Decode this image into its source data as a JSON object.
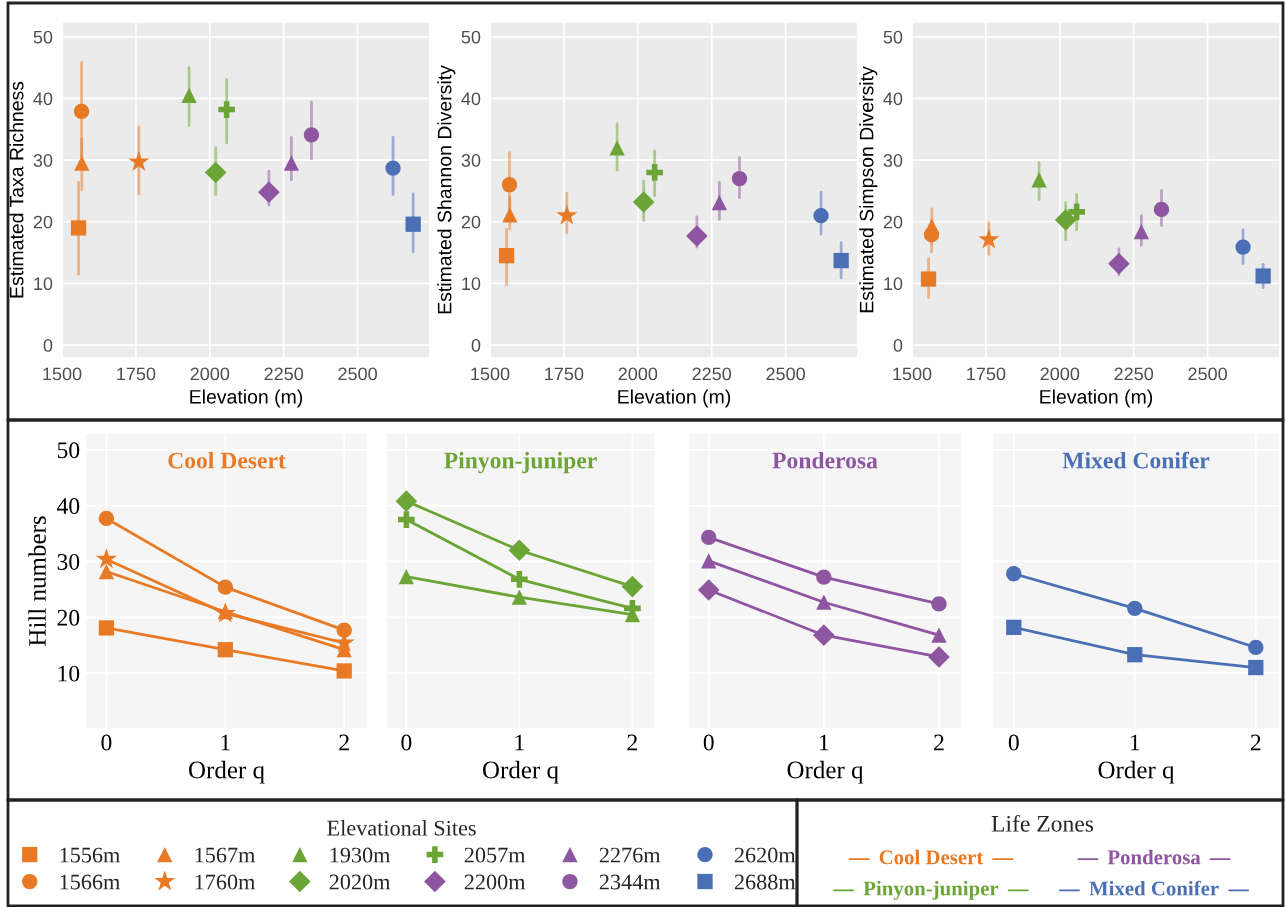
{
  "chart_data": [
    {
      "type": "scatter",
      "xlabel": "Elevation (m)",
      "ylabel": "Estimated Taxa Richness",
      "xlim": [
        1500,
        2745
      ],
      "ylim": [
        -2.1,
        52.4
      ],
      "xticks": [
        1500,
        1750,
        2000,
        2250,
        2500
      ],
      "yticks": [
        0,
        10,
        20,
        30,
        40,
        50
      ],
      "grid": true,
      "legend": "bottom",
      "legend_title": "Elevational Sites",
      "series": [
        {
          "name": "1556m",
          "color": "#e87a26",
          "marker": "square",
          "x": [
            1556
          ],
          "values": [
            19.0
          ],
          "errors": [
            [
              11.5,
              26.4
            ]
          ]
        },
        {
          "name": "1566m",
          "color": "#e87a26",
          "marker": "circle",
          "x": [
            1566
          ],
          "values": [
            37.9
          ],
          "errors": [
            [
              30.5,
              45.8
            ]
          ]
        },
        {
          "name": "1567m",
          "color": "#e87a26",
          "marker": "triangle",
          "x": [
            1567
          ],
          "values": [
            29.5
          ],
          "errors": [
            [
              25.2,
              33.5
            ]
          ]
        },
        {
          "name": "1760m",
          "color": "#e87a26",
          "marker": "star",
          "x": [
            1760
          ],
          "values": [
            29.7
          ],
          "errors": [
            [
              24.5,
              35.4
            ]
          ]
        },
        {
          "name": "1930m",
          "color": "#6aa535",
          "marker": "triangle",
          "x": [
            1930
          ],
          "values": [
            40.5
          ],
          "errors": [
            [
              35.6,
              45.0
            ]
          ]
        },
        {
          "name": "2020m",
          "color": "#6aa535",
          "marker": "diamond",
          "x": [
            2020
          ],
          "values": [
            28.0
          ],
          "errors": [
            [
              24.4,
              32.0
            ]
          ]
        },
        {
          "name": "2057m",
          "color": "#6aa535",
          "marker": "cross",
          "x": [
            2057
          ],
          "values": [
            38.2
          ],
          "errors": [
            [
              32.8,
              43.1
            ]
          ]
        },
        {
          "name": "2200m",
          "color": "#8e55a0",
          "marker": "diamond",
          "x": [
            2200
          ],
          "values": [
            24.8
          ],
          "errors": [
            [
              22.7,
              28.2
            ]
          ]
        },
        {
          "name": "2276m",
          "color": "#8e55a0",
          "marker": "triangle",
          "x": [
            2276
          ],
          "values": [
            29.5
          ],
          "errors": [
            [
              26.8,
              33.7
            ]
          ]
        },
        {
          "name": "2344m",
          "color": "#8e55a0",
          "marker": "circle",
          "x": [
            2344
          ],
          "values": [
            34.1
          ],
          "errors": [
            [
              30.2,
              39.4
            ]
          ]
        },
        {
          "name": "2620m",
          "color": "#4a6fb5",
          "marker": "circle",
          "x": [
            2620
          ],
          "values": [
            28.7
          ],
          "errors": [
            [
              24.4,
              33.7
            ]
          ]
        },
        {
          "name": "2688m",
          "color": "#4a6fb5",
          "marker": "square",
          "x": [
            2688
          ],
          "values": [
            19.6
          ],
          "errors": [
            [
              15.1,
              24.5
            ]
          ]
        }
      ]
    },
    {
      "type": "scatter",
      "xlabel": "Elevation (m)",
      "ylabel": "Estimated Shannon Diversity",
      "xlim": [
        1500,
        2745
      ],
      "ylim": [
        -2.1,
        52.4
      ],
      "xticks": [
        1500,
        1750,
        2000,
        2250,
        2500
      ],
      "yticks": [
        0,
        10,
        20,
        30,
        40,
        50
      ],
      "grid": true,
      "series": [
        {
          "color": "#e87a26",
          "marker": "square",
          "x": [
            1556
          ],
          "values": [
            14.5
          ],
          "errors": [
            [
              9.8,
              18.8
            ]
          ]
        },
        {
          "color": "#e87a26",
          "marker": "circle",
          "x": [
            1566
          ],
          "values": [
            26.0
          ],
          "errors": [
            [
              22.0,
              31.2
            ]
          ]
        },
        {
          "color": "#e87a26",
          "marker": "triangle",
          "x": [
            1567
          ],
          "values": [
            21.1
          ],
          "errors": [
            [
              18.8,
              24.0
            ]
          ]
        },
        {
          "color": "#e87a26",
          "marker": "star",
          "x": [
            1760
          ],
          "values": [
            21.0
          ],
          "errors": [
            [
              18.2,
              24.6
            ]
          ]
        },
        {
          "color": "#6aa535",
          "marker": "triangle",
          "x": [
            1930
          ],
          "values": [
            32.0
          ],
          "errors": [
            [
              28.4,
              35.9
            ]
          ]
        },
        {
          "color": "#6aa535",
          "marker": "diamond",
          "x": [
            2020
          ],
          "values": [
            23.2
          ],
          "errors": [
            [
              20.2,
              26.6
            ]
          ]
        },
        {
          "color": "#6aa535",
          "marker": "cross",
          "x": [
            2057
          ],
          "values": [
            28.0
          ],
          "errors": [
            [
              24.2,
              31.5
            ]
          ]
        },
        {
          "color": "#8e55a0",
          "marker": "diamond",
          "x": [
            2200
          ],
          "values": [
            17.7
          ],
          "errors": [
            [
              15.9,
              20.8
            ]
          ]
        },
        {
          "color": "#8e55a0",
          "marker": "triangle",
          "x": [
            2276
          ],
          "values": [
            23.1
          ],
          "errors": [
            [
              20.4,
              26.4
            ]
          ]
        },
        {
          "color": "#8e55a0",
          "marker": "circle",
          "x": [
            2344
          ],
          "values": [
            27.0
          ],
          "errors": [
            [
              23.9,
              30.4
            ]
          ]
        },
        {
          "color": "#4a6fb5",
          "marker": "circle",
          "x": [
            2620
          ],
          "values": [
            21.0
          ],
          "errors": [
            [
              18.0,
              24.8
            ]
          ]
        },
        {
          "color": "#4a6fb5",
          "marker": "square",
          "x": [
            2688
          ],
          "values": [
            13.7
          ],
          "errors": [
            [
              10.9,
              16.6
            ]
          ]
        }
      ]
    },
    {
      "type": "scatter",
      "xlabel": "Elevation (m)",
      "ylabel": "Estimated Simpson Diversity",
      "xlim": [
        1500,
        2745
      ],
      "ylim": [
        -2.1,
        52.4
      ],
      "xticks": [
        1500,
        1750,
        2000,
        2250,
        2500
      ],
      "yticks": [
        0,
        10,
        20,
        30,
        40,
        50
      ],
      "grid": true,
      "series": [
        {
          "color": "#e87a26",
          "marker": "square",
          "x": [
            1556
          ],
          "values": [
            10.7
          ],
          "errors": [
            [
              7.7,
              14.0
            ]
          ]
        },
        {
          "color": "#e87a26",
          "marker": "circle",
          "x": [
            1566
          ],
          "values": [
            17.9
          ],
          "errors": [
            [
              15.1,
              20.0
            ]
          ]
        },
        {
          "color": "#e87a26",
          "marker": "triangle",
          "x": [
            1567
          ],
          "values": [
            19.3
          ],
          "errors": [
            [
              16.5,
              22.1
            ]
          ]
        },
        {
          "color": "#e87a26",
          "marker": "star",
          "x": [
            1760
          ],
          "values": [
            17.1
          ],
          "errors": [
            [
              14.7,
              19.9
            ]
          ]
        },
        {
          "color": "#6aa535",
          "marker": "triangle",
          "x": [
            1930
          ],
          "values": [
            26.8
          ],
          "errors": [
            [
              23.6,
              29.6
            ]
          ]
        },
        {
          "color": "#6aa535",
          "marker": "diamond",
          "x": [
            2020
          ],
          "values": [
            20.3
          ],
          "errors": [
            [
              17.1,
              23.1
            ]
          ]
        },
        {
          "color": "#6aa535",
          "marker": "cross",
          "x": [
            2057
          ],
          "values": [
            21.6
          ],
          "errors": [
            [
              18.7,
              24.4
            ]
          ]
        },
        {
          "color": "#8e55a0",
          "marker": "diamond",
          "x": [
            2200
          ],
          "values": [
            13.2
          ],
          "errors": [
            [
              11.4,
              15.6
            ]
          ]
        },
        {
          "color": "#8e55a0",
          "marker": "triangle",
          "x": [
            2276
          ],
          "values": [
            18.4
          ],
          "errors": [
            [
              16.2,
              21.0
            ]
          ]
        },
        {
          "color": "#8e55a0",
          "marker": "circle",
          "x": [
            2344
          ],
          "values": [
            22.0
          ],
          "errors": [
            [
              19.4,
              25.1
            ]
          ]
        },
        {
          "color": "#4a6fb5",
          "marker": "circle",
          "x": [
            2620
          ],
          "values": [
            15.9
          ],
          "errors": [
            [
              13.2,
              18.7
            ]
          ]
        },
        {
          "color": "#4a6fb5",
          "marker": "square",
          "x": [
            2688
          ],
          "values": [
            11.2
          ],
          "errors": [
            [
              9.3,
              13.1
            ]
          ]
        }
      ]
    },
    {
      "type": "line",
      "title": "Cool Desert",
      "xlabel": "Order q",
      "ylabel": "Hill numbers",
      "x": [
        0,
        1,
        2
      ],
      "xlim": [
        -0.18,
        2.2
      ],
      "ylim": [
        0,
        53
      ],
      "xticks": [
        0,
        1,
        2
      ],
      "yticks": [
        10,
        20,
        30,
        40,
        50
      ],
      "grid": true,
      "series": [
        {
          "color": "#e87a26",
          "marker": "circle",
          "values": [
            37.7,
            25.4,
            17.7
          ]
        },
        {
          "color": "#e87a26",
          "marker": "star",
          "values": [
            30.4,
            20.7,
            15.4
          ]
        },
        {
          "color": "#e87a26",
          "marker": "triangle",
          "values": [
            28.2,
            21.0,
            14.2
          ]
        },
        {
          "color": "#e87a26",
          "marker": "square",
          "values": [
            18.1,
            14.2,
            10.4
          ]
        }
      ]
    },
    {
      "type": "line",
      "title": "Pinyon-juniper",
      "xlabel": "Order q",
      "x": [
        0,
        1,
        2
      ],
      "xlim": [
        -0.18,
        2.2
      ],
      "ylim": [
        0,
        53
      ],
      "xticks": [
        0,
        1,
        2
      ],
      "yticks": [
        10,
        20,
        30,
        40,
        50
      ],
      "grid": true,
      "tick_labels": "x",
      "series": [
        {
          "color": "#6aa535",
          "marker": "diamond",
          "values": [
            40.8,
            32.0,
            25.5
          ]
        },
        {
          "color": "#6aa535",
          "marker": "cross",
          "values": [
            37.5,
            26.8,
            21.6
          ]
        },
        {
          "color": "#6aa535",
          "marker": "triangle",
          "values": [
            27.3,
            23.6,
            20.5
          ]
        }
      ]
    },
    {
      "type": "line",
      "title": "Ponderosa",
      "xlabel": "Order q",
      "x": [
        0,
        1,
        2
      ],
      "xlim": [
        -0.18,
        2.2
      ],
      "ylim": [
        0,
        53
      ],
      "xticks": [
        0,
        1,
        2
      ],
      "yticks": [
        10,
        20,
        30,
        40,
        50
      ],
      "grid": true,
      "tick_labels": "x",
      "series": [
        {
          "color": "#8e55a0",
          "marker": "circle",
          "values": [
            34.3,
            27.2,
            22.4
          ]
        },
        {
          "color": "#8e55a0",
          "marker": "triangle",
          "values": [
            30.1,
            22.7,
            16.8
          ]
        },
        {
          "color": "#8e55a0",
          "marker": "diamond",
          "values": [
            24.9,
            16.8,
            12.9
          ]
        }
      ]
    },
    {
      "type": "line",
      "title": "Mixed Conifer",
      "xlabel": "Order q",
      "x": [
        0,
        1,
        2
      ],
      "xlim": [
        -0.18,
        2.2
      ],
      "ylim": [
        0,
        53
      ],
      "xticks": [
        0,
        1,
        2
      ],
      "yticks": [
        10,
        20,
        30,
        40,
        50
      ],
      "grid": true,
      "tick_labels": "x",
      "series": [
        {
          "color": "#4a6fb5",
          "marker": "circle",
          "values": [
            27.8,
            21.6,
            14.6
          ]
        },
        {
          "color": "#4a6fb5",
          "marker": "square",
          "values": [
            18.2,
            13.3,
            11.0
          ]
        }
      ]
    },
    {
      "type": "other",
      "title": "Life Zones",
      "annotations": [
        "Cool Desert",
        "Ponderosa",
        "Pinyon-juniper",
        "Mixed Conifer"
      ],
      "colors": [
        "#e87a26",
        "#8e55a0",
        "#6aa535",
        "#4a6fb5"
      ]
    }
  ]
}
